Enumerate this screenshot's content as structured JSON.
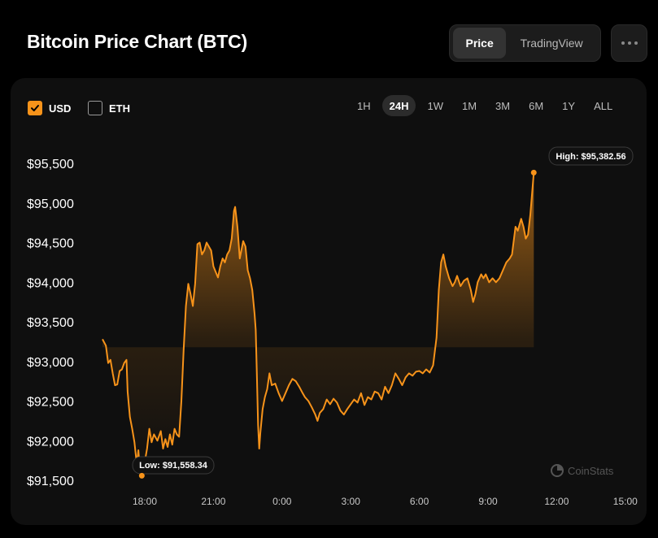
{
  "header": {
    "title": "Bitcoin Price Chart (BTC)",
    "view_tabs": [
      "Price",
      "TradingView"
    ],
    "active_view": "Price",
    "more_icon": "more-horizontal-icon"
  },
  "currency_toggles": [
    {
      "label": "USD",
      "checked": true
    },
    {
      "label": "ETH",
      "checked": false
    }
  ],
  "time_ranges": [
    "1H",
    "24H",
    "1W",
    "1M",
    "3M",
    "6M",
    "1Y",
    "ALL"
  ],
  "active_range": "24H",
  "watermark": "CoinStats",
  "colors": {
    "accent": "#f7931a",
    "background": "#000000",
    "card": "#0f0f0f"
  },
  "chart_data": {
    "type": "area",
    "title": "",
    "xlabel": "",
    "ylabel": "",
    "series": [
      {
        "values": []
      }
    ],
    "x_ticks": [
      "18:00",
      "21:00",
      "0:00",
      "3:00",
      "6:00",
      "9:00",
      "12:00",
      "15:00"
    ],
    "y_ticks": [
      "$95,500",
      "$95,000",
      "$94,500",
      "$94,000",
      "$93,500",
      "$93,000",
      "$92,500",
      "$92,000",
      "$91,500"
    ],
    "y_tick_values": [
      95500,
      95000,
      94500,
      94000,
      93500,
      93000,
      92500,
      92000,
      91500
    ],
    "ylim": [
      91500,
      95500
    ],
    "x_range_hours": [
      16.15,
      39.1
    ],
    "grid": false,
    "points": [
      [
        16.15,
        93280
      ],
      [
        16.3,
        93200
      ],
      [
        16.4,
        92980
      ],
      [
        16.5,
        93020
      ],
      [
        16.6,
        92850
      ],
      [
        16.7,
        92700
      ],
      [
        16.8,
        92710
      ],
      [
        16.9,
        92880
      ],
      [
        17.0,
        92900
      ],
      [
        17.1,
        92980
      ],
      [
        17.2,
        93020
      ],
      [
        17.25,
        92620
      ],
      [
        17.35,
        92300
      ],
      [
        17.45,
        92150
      ],
      [
        17.55,
        91980
      ],
      [
        17.65,
        91700
      ],
      [
        17.72,
        91880
      ],
      [
        17.8,
        91600
      ],
      [
        17.87,
        91558
      ],
      [
        17.95,
        91650
      ],
      [
        18.1,
        91900
      ],
      [
        18.2,
        92150
      ],
      [
        18.3,
        91980
      ],
      [
        18.4,
        92080
      ],
      [
        18.55,
        92000
      ],
      [
        18.7,
        92120
      ],
      [
        18.8,
        91900
      ],
      [
        18.9,
        92020
      ],
      [
        19.0,
        91920
      ],
      [
        19.1,
        92080
      ],
      [
        19.2,
        91950
      ],
      [
        19.3,
        92150
      ],
      [
        19.4,
        92080
      ],
      [
        19.5,
        92050
      ],
      [
        19.6,
        92500
      ],
      [
        19.7,
        93150
      ],
      [
        19.8,
        93700
      ],
      [
        19.9,
        93980
      ],
      [
        20.0,
        93850
      ],
      [
        20.1,
        93700
      ],
      [
        20.2,
        93980
      ],
      [
        20.3,
        94480
      ],
      [
        20.4,
        94500
      ],
      [
        20.5,
        94350
      ],
      [
        20.6,
        94400
      ],
      [
        20.7,
        94500
      ],
      [
        20.8,
        94450
      ],
      [
        20.9,
        94400
      ],
      [
        21.0,
        94200
      ],
      [
        21.1,
        94130
      ],
      [
        21.2,
        94060
      ],
      [
        21.3,
        94200
      ],
      [
        21.4,
        94300
      ],
      [
        21.5,
        94250
      ],
      [
        21.6,
        94350
      ],
      [
        21.7,
        94400
      ],
      [
        21.8,
        94550
      ],
      [
        21.9,
        94900
      ],
      [
        21.95,
        94950
      ],
      [
        22.05,
        94700
      ],
      [
        22.15,
        94300
      ],
      [
        22.3,
        94520
      ],
      [
        22.4,
        94450
      ],
      [
        22.5,
        94150
      ],
      [
        22.6,
        94050
      ],
      [
        22.7,
        93900
      ],
      [
        22.8,
        93600
      ],
      [
        22.85,
        93400
      ],
      [
        22.9,
        92800
      ],
      [
        22.95,
        92200
      ],
      [
        23.0,
        91900
      ],
      [
        23.05,
        92100
      ],
      [
        23.15,
        92400
      ],
      [
        23.25,
        92550
      ],
      [
        23.35,
        92650
      ],
      [
        23.45,
        92850
      ],
      [
        23.55,
        92700
      ],
      [
        23.7,
        92720
      ],
      [
        23.85,
        92600
      ],
      [
        24.0,
        92500
      ],
      [
        24.15,
        92600
      ],
      [
        24.3,
        92700
      ],
      [
        24.45,
        92780
      ],
      [
        24.6,
        92750
      ],
      [
        24.75,
        92680
      ],
      [
        24.9,
        92600
      ],
      [
        25.0,
        92550
      ],
      [
        25.15,
        92500
      ],
      [
        25.3,
        92420
      ],
      [
        25.45,
        92330
      ],
      [
        25.55,
        92250
      ],
      [
        25.65,
        92350
      ],
      [
        25.8,
        92400
      ],
      [
        25.95,
        92520
      ],
      [
        26.1,
        92460
      ],
      [
        26.25,
        92530
      ],
      [
        26.4,
        92480
      ],
      [
        26.55,
        92380
      ],
      [
        26.7,
        92330
      ],
      [
        26.85,
        92400
      ],
      [
        27.0,
        92460
      ],
      [
        27.15,
        92520
      ],
      [
        27.3,
        92480
      ],
      [
        27.45,
        92600
      ],
      [
        27.6,
        92450
      ],
      [
        27.75,
        92550
      ],
      [
        27.9,
        92520
      ],
      [
        28.05,
        92620
      ],
      [
        28.2,
        92600
      ],
      [
        28.35,
        92520
      ],
      [
        28.5,
        92680
      ],
      [
        28.65,
        92600
      ],
      [
        28.8,
        92700
      ],
      [
        28.95,
        92850
      ],
      [
        29.1,
        92780
      ],
      [
        29.25,
        92700
      ],
      [
        29.4,
        92800
      ],
      [
        29.55,
        92850
      ],
      [
        29.7,
        92820
      ],
      [
        29.85,
        92870
      ],
      [
        30.0,
        92880
      ],
      [
        30.15,
        92850
      ],
      [
        30.3,
        92900
      ],
      [
        30.45,
        92860
      ],
      [
        30.6,
        92950
      ],
      [
        30.75,
        93300
      ],
      [
        30.85,
        93900
      ],
      [
        30.95,
        94250
      ],
      [
        31.05,
        94350
      ],
      [
        31.15,
        94200
      ],
      [
        31.3,
        94050
      ],
      [
        31.45,
        93950
      ],
      [
        31.55,
        94000
      ],
      [
        31.65,
        94080
      ],
      [
        31.8,
        93950
      ],
      [
        31.95,
        94020
      ],
      [
        32.1,
        94050
      ],
      [
        32.25,
        93900
      ],
      [
        32.35,
        93750
      ],
      [
        32.45,
        93850
      ],
      [
        32.55,
        94000
      ],
      [
        32.7,
        94100
      ],
      [
        32.8,
        94050
      ],
      [
        32.9,
        94100
      ],
      [
        33.05,
        94000
      ],
      [
        33.2,
        94050
      ],
      [
        33.35,
        94000
      ],
      [
        33.5,
        94050
      ],
      [
        33.65,
        94150
      ],
      [
        33.8,
        94250
      ],
      [
        33.95,
        94300
      ],
      [
        34.05,
        94350
      ],
      [
        34.2,
        94700
      ],
      [
        34.3,
        94650
      ],
      [
        34.45,
        94800
      ],
      [
        34.55,
        94700
      ],
      [
        34.65,
        94550
      ],
      [
        34.75,
        94600
      ],
      [
        34.85,
        94850
      ],
      [
        35.0,
        95383
      ]
    ],
    "high_label": "High: $95,382.56",
    "low_label": "Low: $91,558.34"
  }
}
